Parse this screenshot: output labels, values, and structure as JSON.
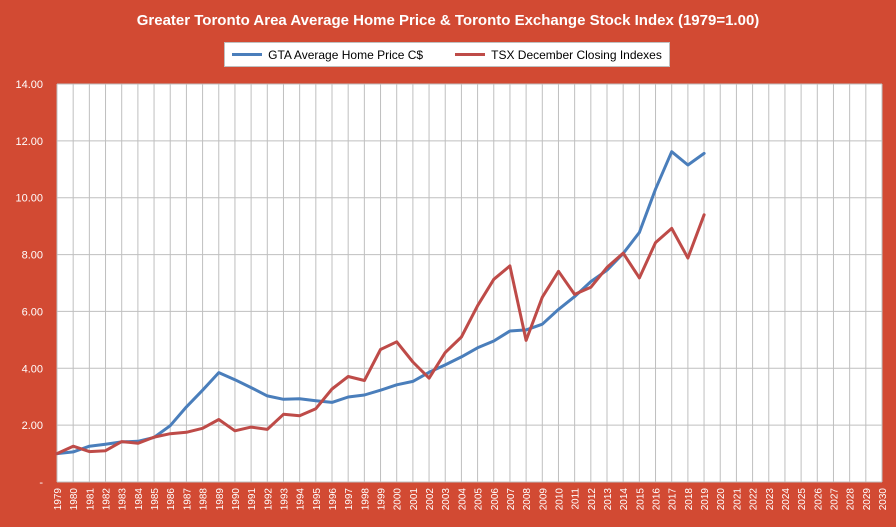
{
  "chart_data": {
    "type": "line",
    "title": "Greater Toronto Area Average Home Price & Toronto Exchange Stock Index (1979=1.00)",
    "xlabel": "",
    "ylabel": "",
    "ylim": [
      0,
      14
    ],
    "xlim": [
      1979,
      2030
    ],
    "grid": true,
    "legend_position": "top-center",
    "y_ticks": [
      "-",
      "2.00",
      "4.00",
      "6.00",
      "8.00",
      "10.00",
      "12.00",
      "14.00"
    ],
    "x_ticks": [
      "1979",
      "1980",
      "1981",
      "1982",
      "1983",
      "1984",
      "1985",
      "1986",
      "1987",
      "1988",
      "1989",
      "1990",
      "1991",
      "1992",
      "1993",
      "1994",
      "1995",
      "1996",
      "1997",
      "1998",
      "1999",
      "2000",
      "2001",
      "2002",
      "2003",
      "2004",
      "2005",
      "2006",
      "2007",
      "2008",
      "2009",
      "2010",
      "2011",
      "2012",
      "2013",
      "2014",
      "2015",
      "2016",
      "2017",
      "2018",
      "2019",
      "2020",
      "2021",
      "2022",
      "2023",
      "2024",
      "2025",
      "2026",
      "2027",
      "2028",
      "2029",
      "2030"
    ],
    "series": [
      {
        "name": "GTA Average Home Price C$",
        "color": "#4a7ebb",
        "x": [
          1979,
          1980,
          1981,
          1982,
          1983,
          1984,
          1985,
          1986,
          1987,
          1988,
          1989,
          1990,
          1991,
          1992,
          1993,
          1994,
          1995,
          1996,
          1997,
          1998,
          1999,
          2000,
          2001,
          2002,
          2003,
          2004,
          2005,
          2006,
          2007,
          2008,
          2009,
          2010,
          2011,
          2012,
          2013,
          2014,
          2015,
          2016,
          2017,
          2018,
          2019
        ],
        "values": [
          1.0,
          1.06,
          1.26,
          1.33,
          1.41,
          1.43,
          1.57,
          1.98,
          2.64,
          3.23,
          3.85,
          3.6,
          3.32,
          3.03,
          2.91,
          2.93,
          2.86,
          2.8,
          2.99,
          3.06,
          3.23,
          3.42,
          3.54,
          3.86,
          4.12,
          4.4,
          4.72,
          4.96,
          5.31,
          5.35,
          5.55,
          6.07,
          6.52,
          7.05,
          7.45,
          8.04,
          8.78,
          10.3,
          11.62,
          11.15,
          11.56
        ]
      },
      {
        "name": "TSX December Closing Indexes",
        "color": "#be4b48",
        "x": [
          1979,
          1980,
          1981,
          1982,
          1983,
          1984,
          1985,
          1986,
          1987,
          1988,
          1989,
          1990,
          1991,
          1992,
          1993,
          1994,
          1995,
          1996,
          1997,
          1998,
          1999,
          2000,
          2001,
          2002,
          2003,
          2004,
          2005,
          2006,
          2007,
          2008,
          2009,
          2010,
          2011,
          2012,
          2013,
          2014,
          2015,
          2016,
          2017,
          2018,
          2019
        ],
        "values": [
          1.0,
          1.26,
          1.07,
          1.1,
          1.42,
          1.36,
          1.58,
          1.7,
          1.75,
          1.89,
          2.2,
          1.8,
          1.93,
          1.85,
          2.38,
          2.33,
          2.58,
          3.27,
          3.71,
          3.57,
          4.66,
          4.93,
          4.22,
          3.65,
          4.55,
          5.1,
          6.2,
          7.13,
          7.6,
          4.98,
          6.5,
          7.41,
          6.6,
          6.85,
          7.55,
          8.05,
          7.18,
          8.42,
          8.92,
          7.88,
          9.4
        ]
      }
    ]
  },
  "colors": {
    "frame": "#d24a33",
    "plot_bg": "#ffffff",
    "grid": "#bfbfbf",
    "axis_text": "#ffffff"
  }
}
